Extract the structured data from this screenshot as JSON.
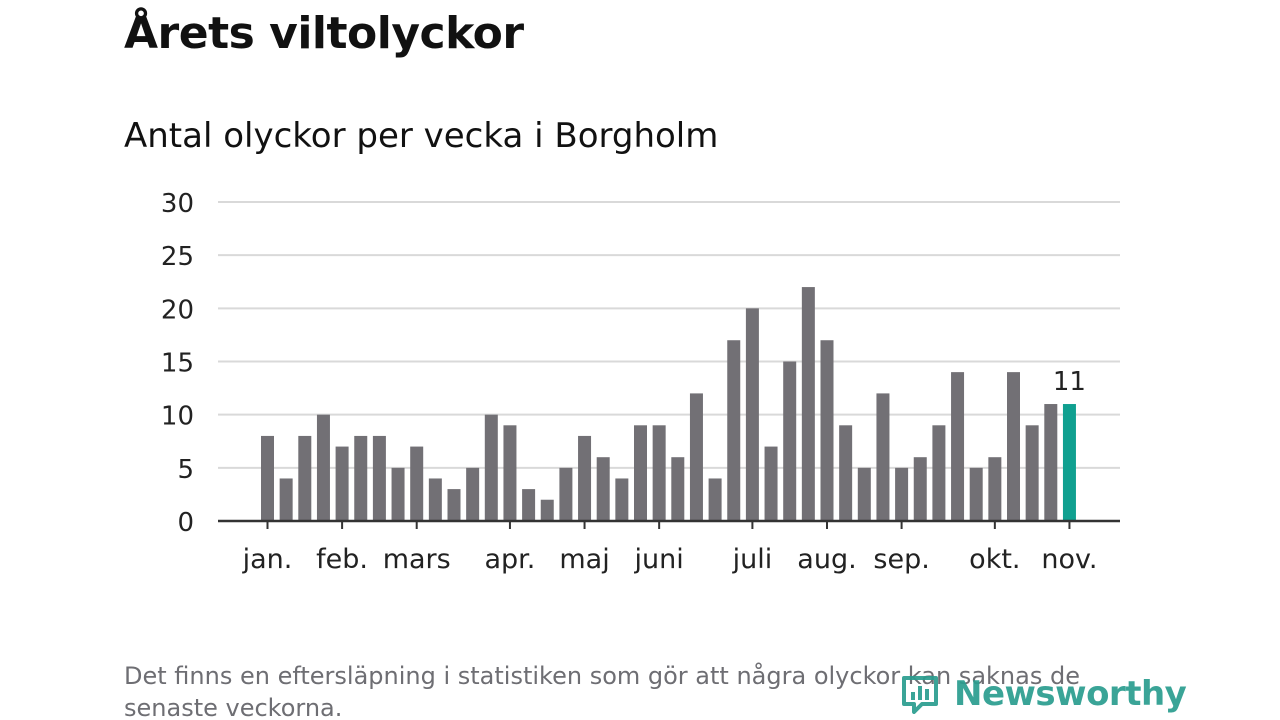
{
  "title": "Årets viltolyckor",
  "subtitle": "Antal olyckor per vecka i Borgholm",
  "footnote": "Det finns en eftersläpning i statistiken som gör att några olyckor kan saknas de senaste veckorna.",
  "logo": {
    "text": "Newsworthy",
    "icon": "newsworthy-logo-icon",
    "color": "#2a9d8f"
  },
  "colors": {
    "bar": "#727075",
    "highlight": "#10a090",
    "grid": "#d9d9d9",
    "axis": "#333333",
    "text": "#222222"
  },
  "chart_data": {
    "type": "bar",
    "title": "Antal olyckor per vecka i Borgholm",
    "xlabel": "",
    "ylabel": "",
    "ylim": [
      0,
      30
    ],
    "yticks": [
      "0",
      "5",
      "10",
      "15",
      "20",
      "25",
      "30"
    ],
    "grid": true,
    "values": [
      8,
      4,
      8,
      10,
      7,
      8,
      8,
      5,
      7,
      4,
      3,
      5,
      10,
      9,
      3,
      2,
      5,
      8,
      6,
      4,
      9,
      9,
      6,
      12,
      4,
      17,
      20,
      7,
      15,
      22,
      17,
      9,
      5,
      12,
      5,
      6,
      9,
      14,
      5,
      6,
      14,
      9,
      11,
      11
    ],
    "highlight_index": 43,
    "highlight_label": "11",
    "month_labels": [
      {
        "label": "jan.",
        "week": 1
      },
      {
        "label": "feb.",
        "week": 5
      },
      {
        "label": "mars",
        "week": 9
      },
      {
        "label": "apr.",
        "week": 14
      },
      {
        "label": "maj",
        "week": 18
      },
      {
        "label": "juni",
        "week": 22
      },
      {
        "label": "juli",
        "week": 27
      },
      {
        "label": "aug.",
        "week": 31
      },
      {
        "label": "sep.",
        "week": 35
      },
      {
        "label": "okt.",
        "week": 40
      },
      {
        "label": "nov.",
        "week": 44
      }
    ]
  }
}
